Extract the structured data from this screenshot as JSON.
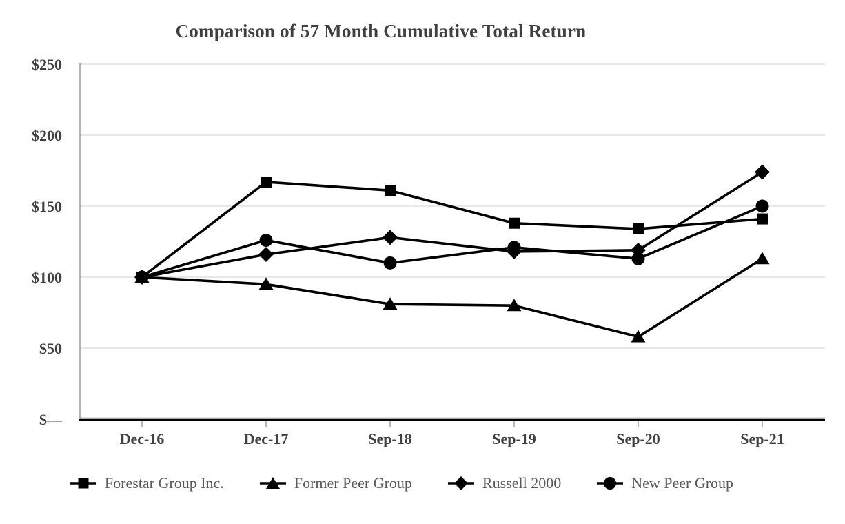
{
  "chart_data": {
    "type": "line",
    "title": "Comparison of 57 Month Cumulative Total Return",
    "categories": [
      "Dec-16",
      "Dec-17",
      "Sep-18",
      "Sep-19",
      "Sep-20",
      "Sep-21"
    ],
    "series": [
      {
        "name": "Forestar Group Inc.",
        "marker": "square",
        "color": "#000000",
        "values": [
          100,
          167,
          161,
          138,
          134,
          141
        ]
      },
      {
        "name": "Former Peer Group",
        "marker": "triangle",
        "color": "#000000",
        "values": [
          100,
          95,
          81,
          80,
          58,
          113
        ]
      },
      {
        "name": "Russell 2000",
        "marker": "diamond",
        "color": "#000000",
        "values": [
          100,
          116,
          128,
          118,
          119,
          174
        ]
      },
      {
        "name": "New Peer Group",
        "marker": "circle",
        "color": "#000000",
        "values": [
          100,
          126,
          110,
          121,
          113,
          150
        ]
      }
    ],
    "xlabel": "",
    "ylabel": "",
    "ylim": [
      0,
      250
    ],
    "y_ticks": [
      {
        "value": 0,
        "label": "$—"
      },
      {
        "value": 50,
        "label": "$50"
      },
      {
        "value": 100,
        "label": "$100"
      },
      {
        "value": 150,
        "label": "$150"
      },
      {
        "value": 200,
        "label": "$200"
      },
      {
        "value": 250,
        "label": "$250"
      }
    ],
    "grid": "horizontal",
    "legend_position": "bottom",
    "colors": {
      "series_line": "#000000",
      "gridline": "#d9d9d9",
      "axis_line": "#8c8c8c",
      "x_axis_line": "#000000",
      "tick_label": "#404040",
      "title_text": "#3f3f3f",
      "legend_text": "#595959"
    }
  }
}
